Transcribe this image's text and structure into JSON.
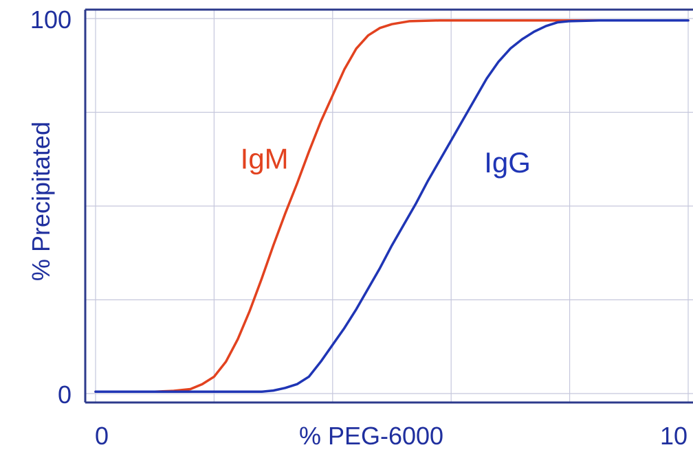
{
  "colors": {
    "axis_text": "#1f2f9e",
    "grid": "#c5c7dc",
    "frame": "#2c3a8c",
    "igm": "#e2421f",
    "igg": "#1f35b5"
  },
  "chart_data": {
    "type": "line",
    "title": "",
    "xlabel": "% PEG-6000",
    "ylabel": "% Precipitated",
    "xlim": [
      0,
      10
    ],
    "ylim": [
      0,
      100
    ],
    "x_ticks": [
      0,
      10
    ],
    "y_ticks": [
      0,
      100
    ],
    "x_tick_labels": [
      "0",
      "10"
    ],
    "y_tick_labels": [
      "0",
      "100"
    ],
    "x_grid": [
      0,
      2,
      4,
      6,
      8,
      10
    ],
    "y_grid": [
      0,
      25,
      50,
      75,
      100
    ],
    "grid": true,
    "legend": "none",
    "series": [
      {
        "name": "IgM",
        "color": "#e2421f",
        "label_position": [
          2.85,
          60
        ],
        "points": [
          [
            0,
            0.5
          ],
          [
            0.5,
            0.5
          ],
          [
            1.0,
            0.5
          ],
          [
            1.3,
            0.7
          ],
          [
            1.6,
            1.2
          ],
          [
            1.8,
            2.5
          ],
          [
            2.0,
            4.5
          ],
          [
            2.2,
            8.5
          ],
          [
            2.4,
            14.5
          ],
          [
            2.6,
            22
          ],
          [
            2.8,
            30.5
          ],
          [
            3.0,
            39.5
          ],
          [
            3.2,
            48
          ],
          [
            3.4,
            56
          ],
          [
            3.6,
            64.5
          ],
          [
            3.8,
            72.5
          ],
          [
            4.0,
            79.5
          ],
          [
            4.2,
            86.5
          ],
          [
            4.4,
            92
          ],
          [
            4.6,
            95.5
          ],
          [
            4.8,
            97.5
          ],
          [
            5.0,
            98.5
          ],
          [
            5.3,
            99.3
          ],
          [
            5.8,
            99.5
          ],
          [
            6.2,
            99.5
          ],
          [
            7.0,
            99.5
          ],
          [
            8.0,
            99.5
          ],
          [
            9.0,
            99.5
          ],
          [
            10.0,
            99.5
          ]
        ]
      },
      {
        "name": "IgG",
        "color": "#1f35b5",
        "label_position": [
          6.95,
          59
        ],
        "points": [
          [
            0,
            0.5
          ],
          [
            1.0,
            0.5
          ],
          [
            2.0,
            0.5
          ],
          [
            2.8,
            0.5
          ],
          [
            3.0,
            0.8
          ],
          [
            3.2,
            1.5
          ],
          [
            3.4,
            2.5
          ],
          [
            3.6,
            4.5
          ],
          [
            3.8,
            8.5
          ],
          [
            4.0,
            13
          ],
          [
            4.2,
            17.5
          ],
          [
            4.4,
            22.5
          ],
          [
            4.6,
            28
          ],
          [
            4.8,
            33.5
          ],
          [
            5.0,
            39.5
          ],
          [
            5.2,
            45
          ],
          [
            5.4,
            50.5
          ],
          [
            5.6,
            56.5
          ],
          [
            5.8,
            62
          ],
          [
            6.0,
            67.5
          ],
          [
            6.2,
            73
          ],
          [
            6.4,
            78.5
          ],
          [
            6.6,
            84
          ],
          [
            6.8,
            88.5
          ],
          [
            7.0,
            92
          ],
          [
            7.2,
            94.5
          ],
          [
            7.4,
            96.5
          ],
          [
            7.6,
            98
          ],
          [
            7.8,
            99
          ],
          [
            8.0,
            99.3
          ],
          [
            8.5,
            99.5
          ],
          [
            9.0,
            99.5
          ],
          [
            10.0,
            99.5
          ]
        ]
      }
    ]
  }
}
